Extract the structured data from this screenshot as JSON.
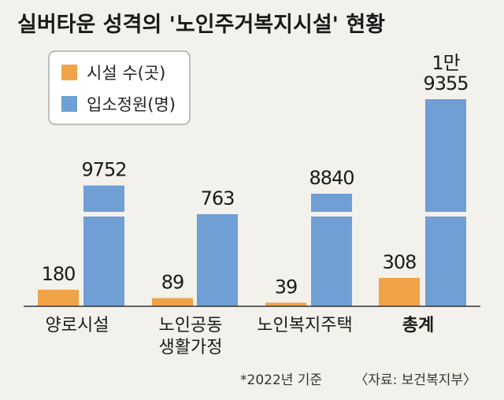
{
  "title": "실버타운 성격의 '노인주거복지시설' 현황",
  "legend": [
    {
      "label": "시설 수(곳)",
      "color": "#f0a347"
    },
    {
      "label": "입소정원(명)",
      "color": "#6f9fd4"
    }
  ],
  "chart_data": {
    "type": "bar",
    "title": "실버타운 성격의 '노인주거복지시설' 현황",
    "categories": [
      {
        "lines": [
          "양로시설"
        ],
        "bold": false
      },
      {
        "lines": [
          "노인공동",
          "생활가정"
        ],
        "bold": false
      },
      {
        "lines": [
          "노인복지주택"
        ],
        "bold": false
      },
      {
        "lines": [
          "총계"
        ],
        "bold": true
      }
    ],
    "series": [
      {
        "name": "시설 수(곳)",
        "values": [
          180,
          89,
          39,
          308
        ],
        "labels": [
          [
            "180"
          ],
          [
            "89"
          ],
          [
            "39"
          ],
          [
            "308"
          ]
        ],
        "color": "#f0a347"
      },
      {
        "name": "입소정원(명)",
        "values": [
          9752,
          763,
          8840,
          19355
        ],
        "labels": [
          [
            "9752"
          ],
          [
            "763"
          ],
          [
            "8840"
          ],
          [
            "1만",
            "9355"
          ]
        ],
        "color": "#6f9fd4"
      }
    ],
    "axis_broken": true,
    "grid": false,
    "legend_position": "top-left"
  },
  "footnote": "*2022년 기준",
  "source": "〈자료: 보건복지부〉"
}
